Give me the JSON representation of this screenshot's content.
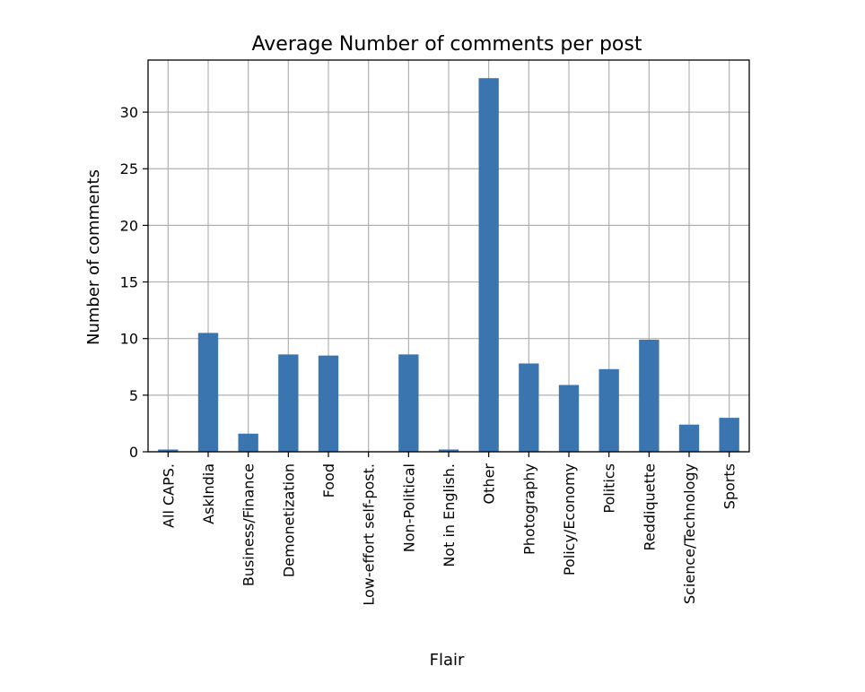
{
  "chart_data": {
    "type": "bar",
    "title": "Average Number of comments per post",
    "xlabel": "Flair",
    "ylabel": "Number of comments",
    "categories": [
      "All CAPS.",
      "AskIndia",
      "Business/Finance",
      "Demonetization",
      "Food",
      "Low-effort self-post.",
      "Non-Political",
      "Not in English.",
      "Other",
      "Photography",
      "Policy/Economy",
      "Politics",
      "Reddiquette",
      "Science/Technology",
      "Sports"
    ],
    "values": [
      0.2,
      10.5,
      1.6,
      8.6,
      8.5,
      0.0,
      8.6,
      0.2,
      33.0,
      7.8,
      5.9,
      7.3,
      9.9,
      2.4,
      3.0
    ],
    "ylim": [
      0,
      34.6
    ],
    "yticks": [
      0,
      5,
      10,
      15,
      20,
      25,
      30
    ],
    "grid": true,
    "color": "#3a75b0"
  }
}
